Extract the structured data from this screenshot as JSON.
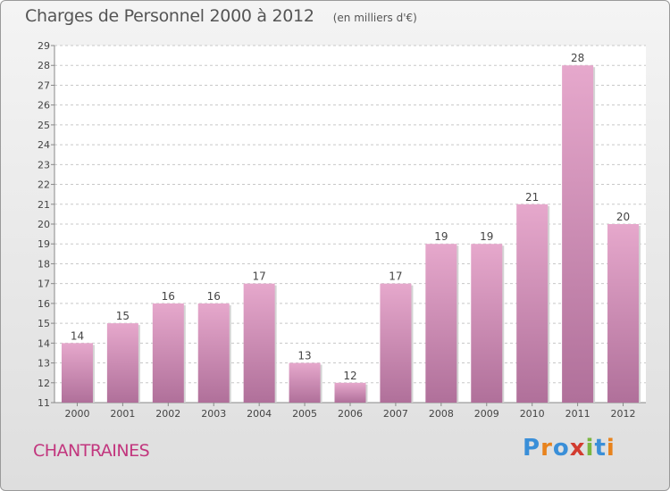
{
  "header": {
    "title": "Charges de Personnel 2000 à 2012",
    "subtitle": "(en milliers d'€)"
  },
  "footer": {
    "commune": "CHANTRAINES",
    "logo_text": "Proxiti",
    "logo_colors": [
      "#3a8fd8",
      "#e8831d",
      "#3a8fd8",
      "#d23c30",
      "#7ab640",
      "#3a8fd8",
      "#e8831d"
    ]
  },
  "chart_data": {
    "type": "bar",
    "title": "Charges de Personnel 2000 à 2012",
    "subtitle": "(en milliers d'€)",
    "categories": [
      "2000",
      "2001",
      "2002",
      "2003",
      "2004",
      "2005",
      "2006",
      "2007",
      "2008",
      "2009",
      "2010",
      "2011",
      "2012"
    ],
    "values": [
      14,
      15,
      16,
      16,
      17,
      13,
      12,
      17,
      19,
      19,
      21,
      28,
      20
    ],
    "ylim": [
      11,
      29
    ],
    "yticks": [
      11,
      12,
      13,
      14,
      15,
      16,
      17,
      18,
      19,
      20,
      21,
      22,
      23,
      24,
      25,
      26,
      27,
      28,
      29
    ],
    "grid": true,
    "bar_color_top": "#e6a8cc",
    "bar_color_bottom": "#b0709a"
  }
}
